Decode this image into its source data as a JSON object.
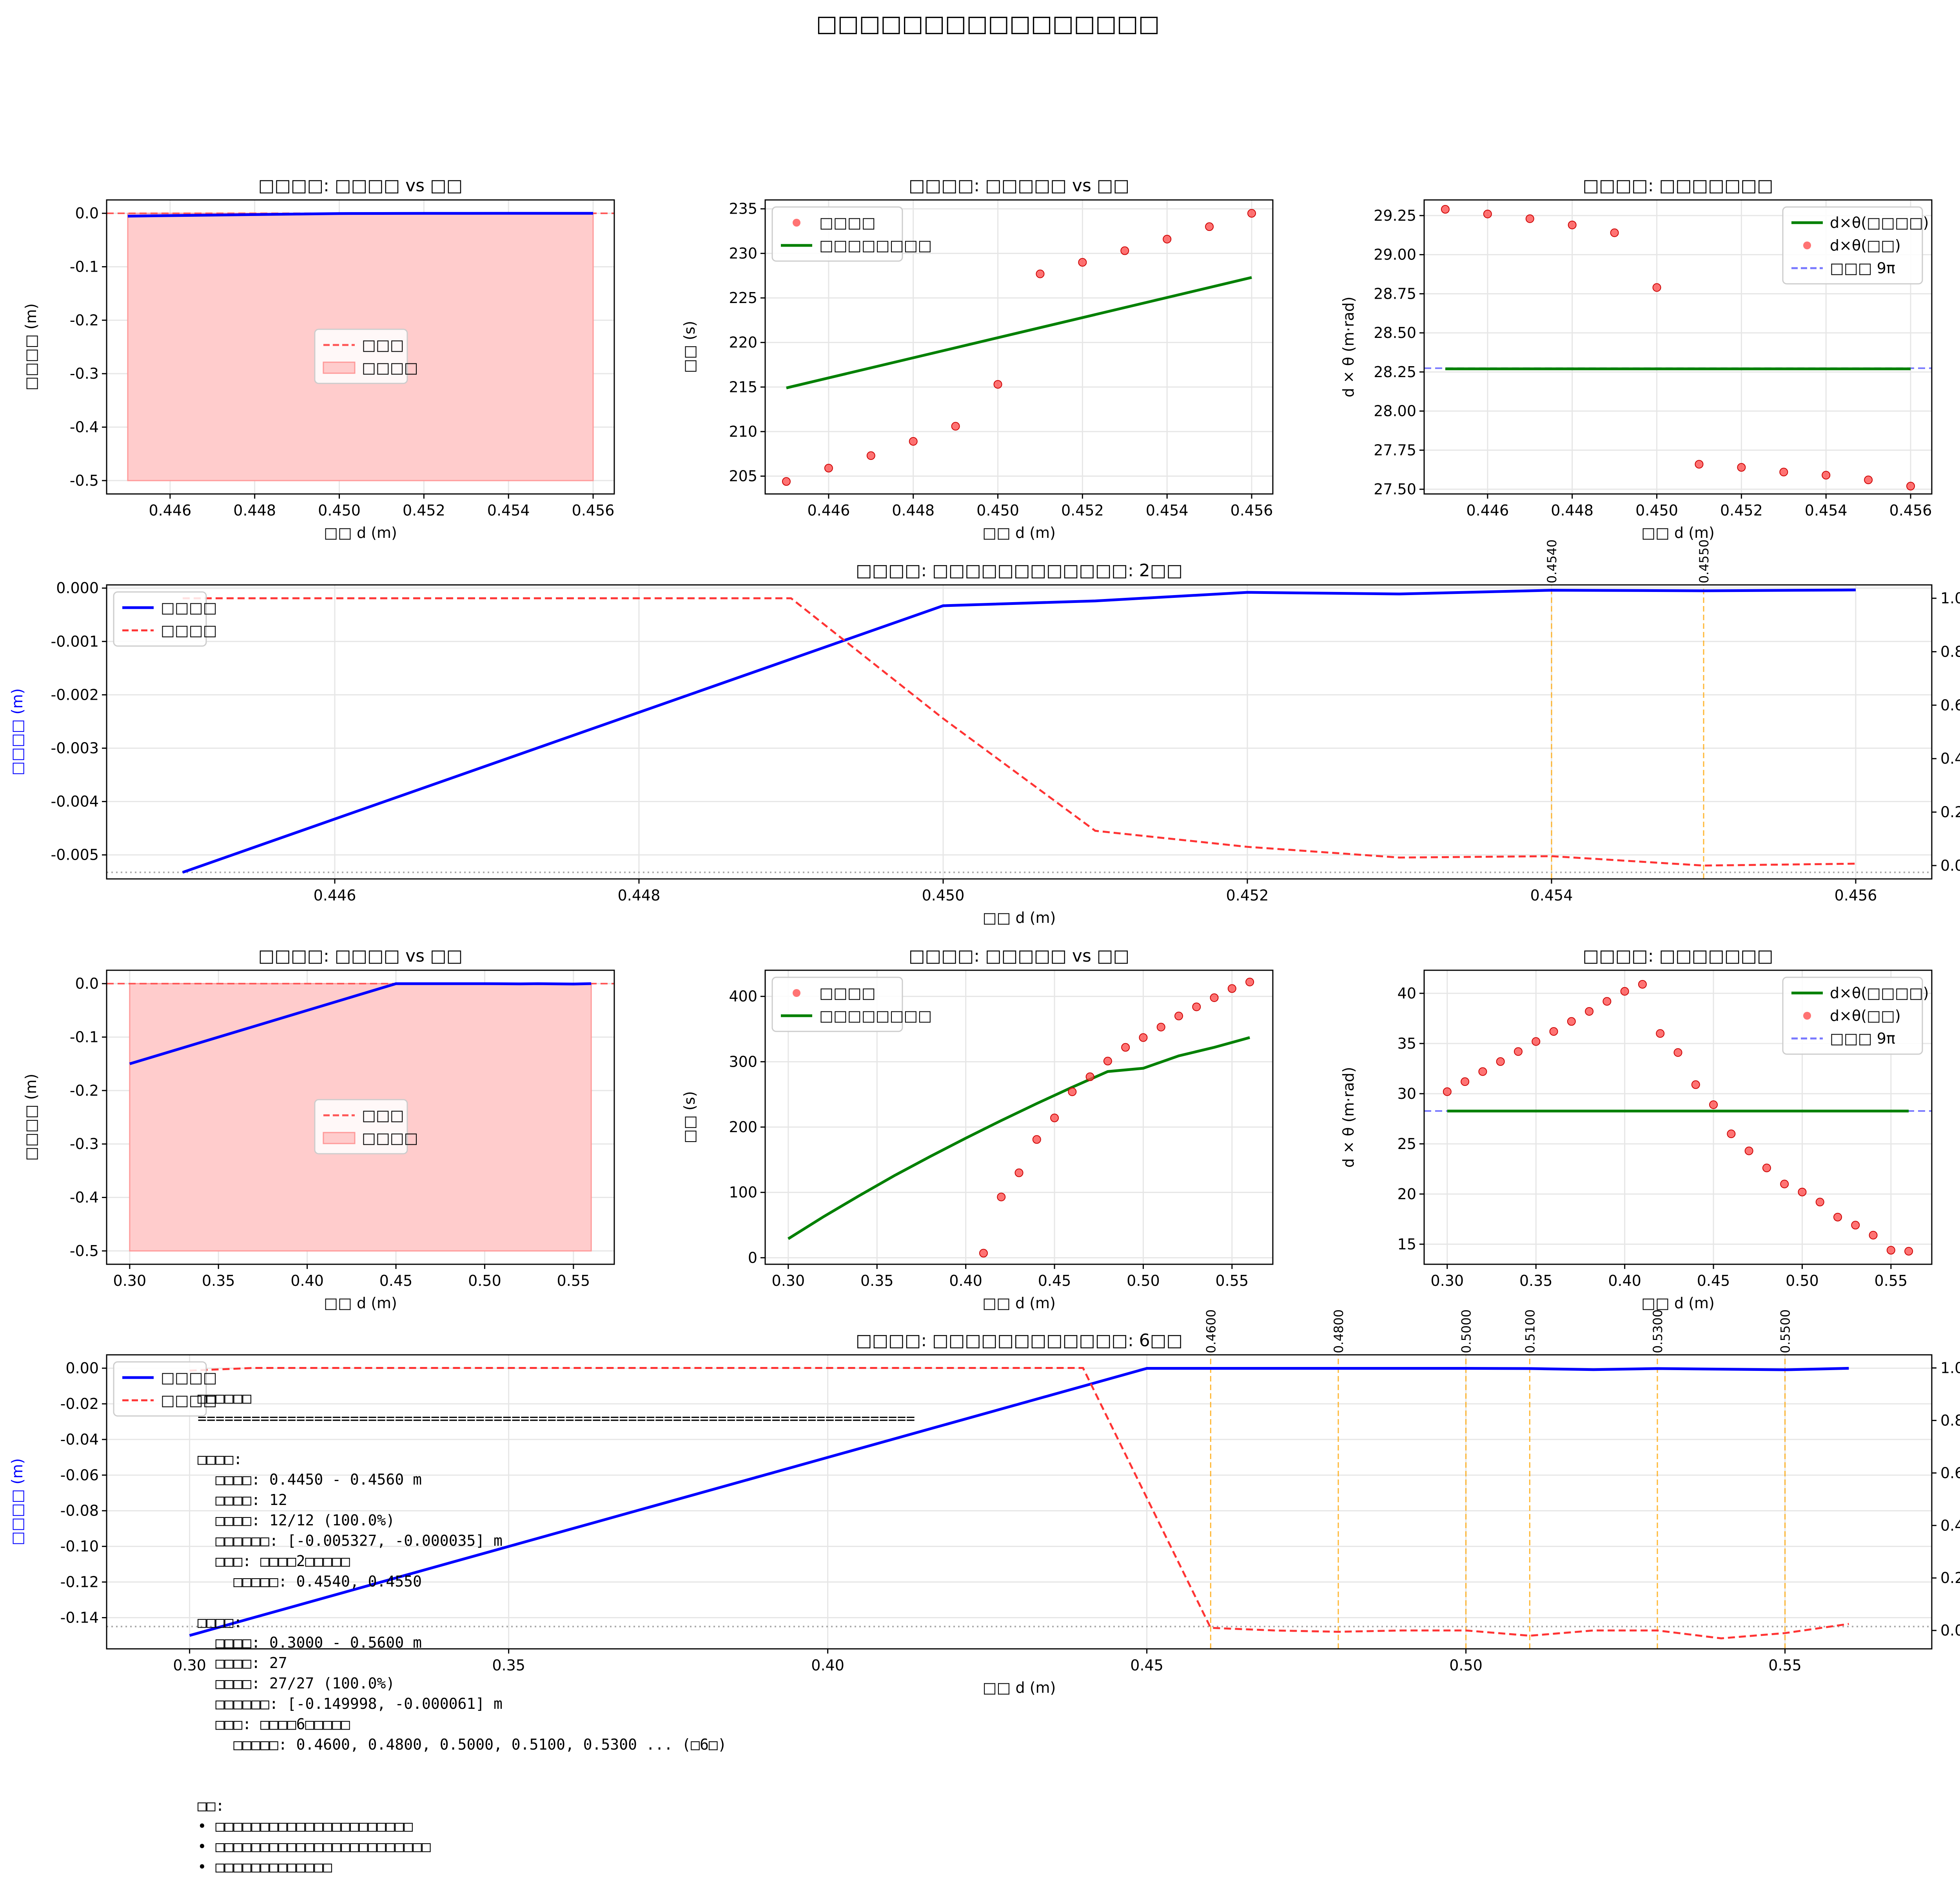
{
  "figure": {
    "suptitle": "□□□□□□□□□□□□□□□□"
  },
  "colors": {
    "blue": "#0000ff",
    "red": "#ff0000",
    "red_light": "#ffcccc",
    "green": "#008000",
    "orange": "#ffa500",
    "grid": "#e6e6e6"
  },
  "chart_data": [
    {
      "id": "p1",
      "type": "area",
      "title": "□□□□: □□□□ vs □□",
      "xlabel": "□□ d (m)",
      "ylabel": "□□□□ (m)",
      "xlim": [
        0.4445,
        0.4565
      ],
      "ylim": [
        -0.525,
        0.025
      ],
      "xticks": [
        0.446,
        0.448,
        0.45,
        0.452,
        0.454,
        0.456
      ],
      "yticks": [
        0.0,
        -0.1,
        -0.2,
        -0.3,
        -0.4,
        -0.5
      ],
      "x": [
        0.445,
        0.446,
        0.447,
        0.448,
        0.449,
        0.45,
        0.451,
        0.452,
        0.453,
        0.454,
        0.455,
        0.456
      ],
      "y": [
        -0.005327,
        -0.00435,
        -0.00338,
        -0.00241,
        -0.00143,
        -0.00046,
        -0.00032,
        -0.0001,
        -0.00015,
        -4e-05,
        -5e-05,
        -3.5e-05
      ],
      "fill_range": [
        -0.5,
        0.0
      ],
      "hline": 0.0,
      "legend": [
        "□□□",
        "□□□□"
      ]
    },
    {
      "id": "p2",
      "type": "scatter",
      "title": "□□□□: □□□□□ vs □□",
      "xlabel": "□□ d (m)",
      "ylabel": "□□ (s)",
      "xlim": [
        0.4445,
        0.4565
      ],
      "ylim": [
        203,
        236
      ],
      "xticks": [
        0.446,
        0.448,
        0.45,
        0.452,
        0.454,
        0.456
      ],
      "yticks": [
        205,
        210,
        215,
        220,
        225,
        230,
        235
      ],
      "x": [
        0.445,
        0.446,
        0.447,
        0.448,
        0.449,
        0.45,
        0.451,
        0.452,
        0.453,
        0.454,
        0.455,
        0.456
      ],
      "y": [
        204.4,
        205.9,
        207.3,
        208.9,
        210.6,
        215.3,
        227.7,
        229.0,
        230.3,
        231.6,
        233.0,
        234.5
      ],
      "line_x": [
        0.445,
        0.456
      ],
      "line_y": [
        214.9,
        227.3
      ],
      "legend": [
        "□□□□",
        "□□□□□□□□"
      ]
    },
    {
      "id": "p3",
      "type": "scatter",
      "title": "□□□□: □□□□□□□",
      "xlabel": "□□ d (m)",
      "ylabel": "d × θ (m·rad)",
      "xlim": [
        0.4445,
        0.4565
      ],
      "ylim": [
        27.47,
        29.35
      ],
      "xticks": [
        0.446,
        0.448,
        0.45,
        0.452,
        0.454,
        0.456
      ],
      "yticks": [
        27.5,
        27.75,
        28.0,
        28.25,
        28.5,
        28.75,
        29.0,
        29.25
      ],
      "x": [
        0.445,
        0.446,
        0.447,
        0.448,
        0.449,
        0.45,
        0.451,
        0.452,
        0.453,
        0.454,
        0.455,
        0.456
      ],
      "y": [
        29.29,
        29.26,
        29.23,
        29.19,
        29.14,
        28.79,
        27.66,
        27.64,
        27.61,
        27.59,
        27.56,
        27.52
      ],
      "line_y": 28.27,
      "hline": 28.274,
      "legend": [
        "d×θ(□□□□)",
        "d×θ(□□)",
        "□□□ 9π"
      ]
    },
    {
      "id": "p4",
      "type": "line",
      "title": "□□□□: □□□□□□□□□□□□: 2□□",
      "xlabel": "□□ d (m)",
      "ylabel": "□□□□ (m)",
      "y2label": "□□□□",
      "xlim": [
        0.4445,
        0.4565
      ],
      "ylim": [
        -0.00545,
        6e-05
      ],
      "y2lim": [
        -0.05,
        1.05
      ],
      "xticks": [
        0.446,
        0.448,
        0.45,
        0.452,
        0.454,
        0.456
      ],
      "yticks": [
        0.0,
        -0.001,
        -0.002,
        -0.003,
        -0.004,
        -0.005
      ],
      "yticklabels": [
        "0.000",
        "-0.001",
        "-0.002",
        "-0.003",
        "-0.004",
        "-0.005"
      ],
      "y2ticks": [
        0.0,
        0.2,
        0.4,
        0.6,
        0.8,
        1.0
      ],
      "x": [
        0.445,
        0.45,
        0.451,
        0.452,
        0.453,
        0.454,
        0.455,
        0.456
      ],
      "y": [
        -0.005327,
        -0.00033,
        -0.00024,
        -8e-05,
        -0.00011,
        -4e-05,
        -5e-05,
        -3.5e-05
      ],
      "x2": [
        0.445,
        0.449,
        0.45,
        0.451,
        0.452,
        0.453,
        0.454,
        0.455,
        0.456
      ],
      "y2": [
        1.0,
        1.0,
        0.55,
        0.13,
        0.07,
        0.03,
        0.035,
        0.0,
        0.007
      ],
      "hline_y": -0.005327,
      "vlines": [
        0.454,
        0.455
      ],
      "vline_labels": [
        "0.4540",
        "0.4550"
      ],
      "legend": [
        "□□□□",
        "□□□□"
      ]
    },
    {
      "id": "p5",
      "type": "area",
      "title": "□□□□: □□□□ vs □□",
      "xlabel": "□□ d (m)",
      "ylabel": "□□□□ (m)",
      "xlim": [
        0.287,
        0.573
      ],
      "ylim": [
        -0.525,
        0.025
      ],
      "xticks": [
        0.3,
        0.35,
        0.4,
        0.45,
        0.5,
        0.55
      ],
      "xticklabels": [
        "0.30",
        "0.35",
        "0.40",
        "0.45",
        "0.50",
        "0.55"
      ],
      "yticks": [
        0.0,
        -0.1,
        -0.2,
        -0.3,
        -0.4,
        -0.5
      ],
      "x": [
        0.3,
        0.45,
        0.46,
        0.5,
        0.52,
        0.53,
        0.55,
        0.56
      ],
      "y": [
        -0.149998,
        -0.0001,
        -0.0001,
        -0.0001,
        -0.0005,
        -0.0001,
        -0.0008,
        -6.1e-05
      ],
      "fill_range": [
        -0.5,
        0.0
      ],
      "fill_x": [
        0.3,
        0.56
      ],
      "hline": 0.0,
      "legend": [
        "□□□",
        "□□□□"
      ]
    },
    {
      "id": "p6",
      "type": "scatter",
      "title": "□□□□: □□□□□ vs □□",
      "xlabel": "□□ d (m)",
      "ylabel": "□□ (s)",
      "xlim": [
        0.287,
        0.573
      ],
      "ylim": [
        -10,
        440
      ],
      "xticks": [
        0.3,
        0.35,
        0.4,
        0.45,
        0.5,
        0.55
      ],
      "xticklabels": [
        "0.30",
        "0.35",
        "0.40",
        "0.45",
        "0.50",
        "0.55"
      ],
      "yticks": [
        0,
        100,
        200,
        300,
        400
      ],
      "x": [
        0.41,
        0.42,
        0.43,
        0.44,
        0.45,
        0.46,
        0.47,
        0.48,
        0.49,
        0.5,
        0.51,
        0.52,
        0.53,
        0.54,
        0.55,
        0.56
      ],
      "y": [
        7,
        93,
        130,
        181,
        214,
        254,
        277,
        301,
        322,
        337,
        353,
        370,
        384,
        398,
        412,
        422
      ],
      "line_x": [
        0.3,
        0.32,
        0.34,
        0.36,
        0.38,
        0.4,
        0.42,
        0.44,
        0.46,
        0.48,
        0.5,
        0.52,
        0.54,
        0.56
      ],
      "line_y": [
        29,
        63,
        95,
        126,
        155,
        183,
        210,
        236,
        261,
        285,
        290,
        309,
        322,
        337
      ],
      "legend": [
        "□□□□",
        "□□□□□□□□"
      ]
    },
    {
      "id": "p7",
      "type": "scatter",
      "title": "□□□□: □□□□□□□",
      "xlabel": "□□ d (m)",
      "ylabel": "d × θ (m·rad)",
      "xlim": [
        0.287,
        0.573
      ],
      "ylim": [
        13.0,
        42.3
      ],
      "xticks": [
        0.3,
        0.35,
        0.4,
        0.45,
        0.5,
        0.55
      ],
      "xticklabels": [
        "0.30",
        "0.35",
        "0.40",
        "0.45",
        "0.50",
        "0.55"
      ],
      "yticks": [
        15,
        20,
        25,
        30,
        35,
        40
      ],
      "x": [
        0.3,
        0.31,
        0.32,
        0.33,
        0.34,
        0.35,
        0.36,
        0.37,
        0.38,
        0.39,
        0.4,
        0.41,
        0.42,
        0.43,
        0.44,
        0.45,
        0.46,
        0.47,
        0.48,
        0.49,
        0.5,
        0.51,
        0.52,
        0.53,
        0.54,
        0.55,
        0.56
      ],
      "y": [
        30.2,
        31.2,
        32.2,
        33.2,
        34.2,
        35.2,
        36.2,
        37.2,
        38.2,
        39.2,
        40.2,
        40.9,
        36.0,
        34.1,
        30.9,
        28.9,
        26.0,
        24.3,
        22.6,
        21.0,
        20.2,
        19.2,
        17.7,
        16.9,
        15.9,
        14.4,
        14.3
      ],
      "line_y": 28.27,
      "hline": 28.274,
      "legend": [
        "d×θ(□□□□)",
        "d×θ(□□)",
        "□□□ 9π"
      ]
    },
    {
      "id": "p8",
      "type": "line",
      "title": "□□□□: □□□□□□□□□□□□: 6□□",
      "xlabel": "□□ d (m)",
      "ylabel": "□□□□ (m)",
      "y2label": "□□□□",
      "xlim": [
        0.287,
        0.573
      ],
      "ylim": [
        -0.1575,
        0.0075
      ],
      "y2lim": [
        -0.07,
        1.05
      ],
      "xticks": [
        0.3,
        0.35,
        0.4,
        0.45,
        0.5,
        0.55
      ],
      "xticklabels": [
        "0.30",
        "0.35",
        "0.40",
        "0.45",
        "0.50",
        "0.55"
      ],
      "yticks": [
        0.0,
        -0.02,
        -0.04,
        -0.06,
        -0.08,
        -0.1,
        -0.12,
        -0.14
      ],
      "yticklabels": [
        "0.00",
        "-0.02",
        "-0.04",
        "-0.06",
        "-0.08",
        "-0.10",
        "-0.12",
        "-0.14"
      ],
      "y2ticks": [
        0.0,
        0.2,
        0.4,
        0.6,
        0.8,
        1.0
      ],
      "x": [
        0.3,
        0.45,
        0.46,
        0.48,
        0.5,
        0.51,
        0.52,
        0.53,
        0.55,
        0.56
      ],
      "y": [
        -0.149998,
        -0.0001,
        -0.0001,
        -0.0001,
        -0.0001,
        -0.0002,
        -0.0008,
        -0.0002,
        -0.0009,
        -6.1e-05
      ],
      "x2": [
        0.3,
        0.31,
        0.44,
        0.46,
        0.47,
        0.48,
        0.49,
        0.5,
        0.51,
        0.52,
        0.53,
        0.54,
        0.55,
        0.56
      ],
      "y2": [
        0.99,
        1.0,
        1.0,
        0.01,
        0.0,
        -0.005,
        0.0,
        0.0,
        -0.02,
        0.0,
        0.0,
        -0.03,
        -0.01,
        0.025
      ],
      "hline_y": -0.145,
      "vlines": [
        0.46,
        0.48,
        0.5,
        0.51,
        0.53,
        0.55
      ],
      "vline_labels": [
        "0.4600",
        "0.4800",
        "0.5000",
        "0.5100",
        "0.5300",
        "0.5500"
      ],
      "legend": [
        "□□□□",
        "□□□□"
      ]
    }
  ],
  "summary": {
    "text": "□□□□□□\n================================================================================\n\n□□□□:\n  □□□□: 0.4450 - 0.4560 m\n  □□□□: 12\n  □□□□: 12/12 (100.0%)\n  □□□□□□: [-0.005327, -0.000035] m\n  □□□: □□□□2□□□□□\n    □□□□□: 0.4540, 0.4550\n\n□□□□:\n  □□□□: 0.3000 - 0.5600 m\n  □□□□: 27\n  □□□□: 27/27 (100.0%)\n  □□□□□□: [-0.149998, -0.000061] m\n  □□□: □□□□6□□□□□\n    □□□□□: 0.4600, 0.4800, 0.5000, 0.5100, 0.5300 ... (□6□)\n\n\n□□:\n• □□□□□□□□□□□□□□□□□□□□□□\n• □□□□□□□□□□□□□□□□□□□□□□□□\n• □□□□□□□□□□□□□",
    "rule_top": "================================================================================"
  }
}
